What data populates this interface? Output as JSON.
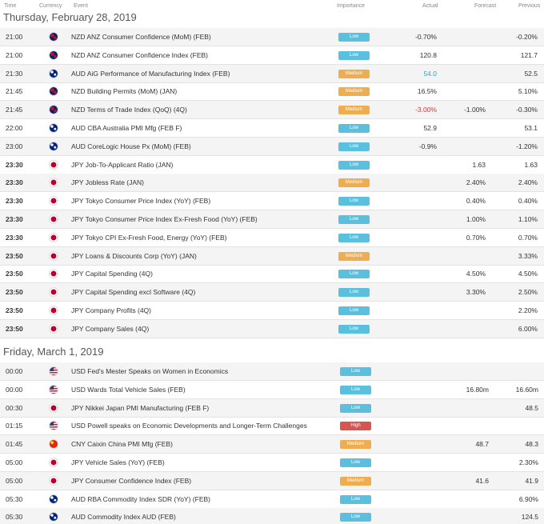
{
  "header": {
    "time": "Time",
    "currency": "Currency",
    "event": "Event",
    "importance": "Importance",
    "actual": "Actual",
    "forecast": "Forecast",
    "previous": "Previous"
  },
  "colors": {
    "low": "#5bc0de",
    "medium": "#f0ad4e",
    "high": "#d9534f",
    "actual_positive": "#2aa3d9",
    "actual_negative": "#e0302f"
  },
  "days": [
    {
      "title": "Thursday, February 28, 2019",
      "events": [
        {
          "time": "21:00",
          "flag": "nz-flag-icon",
          "event": "NZD ANZ Consumer Confidence (MoM) (FEB)",
          "importance": "Low",
          "actual": "-0.70%",
          "forecast": "",
          "previous": "-0.20%"
        },
        {
          "time": "21:00",
          "flag": "nz-flag-icon",
          "event": "NZD ANZ Consumer Confidence Index (FEB)",
          "importance": "Low",
          "actual": "120.8",
          "forecast": "",
          "previous": "121.7"
        },
        {
          "time": "21:30",
          "flag": "au-flag-icon",
          "event": "AUD AiG Performance of Manufacturing Index (FEB)",
          "importance": "Medium",
          "actual": "54.0",
          "actual_color": "#2aa3d9",
          "forecast": "",
          "previous": "52.5"
        },
        {
          "time": "21:45",
          "flag": "nz-flag-icon",
          "event": "NZD Building Permits (MoM) (JAN)",
          "importance": "Medium",
          "actual": "16.5%",
          "forecast": "",
          "previous": "5.10%"
        },
        {
          "time": "21:45",
          "flag": "nz-flag-icon",
          "event": "NZD Terms of Trade Index (QoQ) (4Q)",
          "importance": "Medium",
          "actual": "-3.00%",
          "actual_color": "#e0302f",
          "forecast": "-1.00%",
          "previous": "-0.30%"
        },
        {
          "time": "22:00",
          "flag": "au-flag-icon",
          "event": "AUD CBA Australia PMI Mfg (FEB F)",
          "importance": "Low",
          "actual": "52.9",
          "forecast": "",
          "previous": "53.1"
        },
        {
          "time": "23:00",
          "flag": "au-flag-icon",
          "event": "AUD CoreLogic House Px (MoM) (FEB)",
          "importance": "Low",
          "actual": "-0.9%",
          "forecast": "",
          "previous": "-1.20%"
        },
        {
          "time": "23:30",
          "flag": "jp-flag-icon",
          "event": "JPY Job-To-Applicant Ratio (JAN)",
          "importance": "Low",
          "actual": "",
          "forecast": "1.63",
          "previous": "1.63"
        },
        {
          "time": "23:30",
          "flag": "jp-flag-icon",
          "event": "JPY Jobless Rate (JAN)",
          "importance": "Medium",
          "actual": "",
          "forecast": "2.40%",
          "previous": "2.40%"
        },
        {
          "time": "23:30",
          "flag": "jp-flag-icon",
          "event": "JPY Tokyo Consumer Price Index (YoY) (FEB)",
          "importance": "Low",
          "actual": "",
          "forecast": "0.40%",
          "previous": "0.40%"
        },
        {
          "time": "23:30",
          "flag": "jp-flag-icon",
          "event": "JPY Tokyo Consumer Price Index Ex-Fresh Food (YoY) (FEB)",
          "importance": "Low",
          "actual": "",
          "forecast": "1.00%",
          "previous": "1.10%"
        },
        {
          "time": "23:30",
          "flag": "jp-flag-icon",
          "event": "JPY Tokyo CPI Ex-Fresh Food, Energy (YoY) (FEB)",
          "importance": "Low",
          "actual": "",
          "forecast": "0.70%",
          "previous": "0.70%"
        },
        {
          "time": "23:50",
          "flag": "jp-flag-icon",
          "event": "JPY Loans & Discounts Corp (YoY) (JAN)",
          "importance": "Medium",
          "actual": "",
          "forecast": "",
          "previous": "3.33%"
        },
        {
          "time": "23:50",
          "flag": "jp-flag-icon",
          "event": "JPY Capital Spending (4Q)",
          "importance": "Low",
          "actual": "",
          "forecast": "4.50%",
          "previous": "4.50%"
        },
        {
          "time": "23:50",
          "flag": "jp-flag-icon",
          "event": "JPY Capital Spending excl Software (4Q)",
          "importance": "Low",
          "actual": "",
          "forecast": "3.30%",
          "previous": "2.50%"
        },
        {
          "time": "23:50",
          "flag": "jp-flag-icon",
          "event": "JPY Company Profits (4Q)",
          "importance": "Low",
          "actual": "",
          "forecast": "",
          "previous": "2.20%"
        },
        {
          "time": "23:50",
          "flag": "jp-flag-icon",
          "event": "JPY Company Sales (4Q)",
          "importance": "Low",
          "actual": "",
          "forecast": "",
          "previous": "6.00%"
        }
      ]
    },
    {
      "title": "Friday, March 1, 2019",
      "events": [
        {
          "time": "00:00",
          "flag": "us-flag-icon",
          "event": "USD Fed's Mester Speaks on Women in Economics",
          "importance": "Low",
          "actual": "",
          "forecast": "",
          "previous": ""
        },
        {
          "time": "00:00",
          "flag": "us-flag-icon",
          "event": "USD Wards Total Vehicle Sales (FEB)",
          "importance": "Low",
          "actual": "",
          "forecast": "16.80m",
          "previous": "16.60m"
        },
        {
          "time": "00:30",
          "flag": "jp-flag-icon",
          "event": "JPY Nikkei Japan PMI Manufacturing (FEB F)",
          "importance": "Low",
          "actual": "",
          "forecast": "",
          "previous": "48.5"
        },
        {
          "time": "01:15",
          "flag": "us-flag-icon",
          "event": "USD Powell speaks on Economic Developments and Longer-Term Challenges",
          "importance": "High",
          "actual": "",
          "forecast": "",
          "previous": ""
        },
        {
          "time": "01:45",
          "flag": "cn-flag-icon",
          "event": "CNY Caixin China PMI Mfg (FEB)",
          "importance": "Medium",
          "actual": "",
          "forecast": "48.7",
          "previous": "48.3"
        },
        {
          "time": "05:00",
          "flag": "jp-flag-icon",
          "event": "JPY Vehicle Sales (YoY) (FEB)",
          "importance": "Low",
          "actual": "",
          "forecast": "",
          "previous": "2.30%"
        },
        {
          "time": "05:00",
          "flag": "jp-flag-icon",
          "event": "JPY Consumer Confidence Index (FEB)",
          "importance": "Medium",
          "actual": "",
          "forecast": "41.6",
          "previous": "41.9"
        },
        {
          "time": "05:30",
          "flag": "au-flag-icon",
          "event": "AUD RBA Commodity Index SDR (YoY) (FEB)",
          "importance": "Low",
          "actual": "",
          "forecast": "",
          "previous": "6.90%"
        },
        {
          "time": "05:30",
          "flag": "au-flag-icon",
          "event": "AUD Commodity Index AUD (FEB)",
          "importance": "Low",
          "actual": "",
          "forecast": "",
          "previous": "124.5"
        }
      ]
    }
  ]
}
